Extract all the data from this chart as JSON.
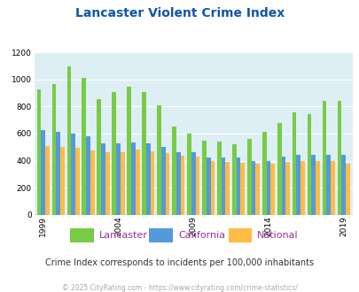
{
  "title": "Lancaster Violent Crime Index",
  "subtitle": "Crime Index corresponds to incidents per 100,000 inhabitants",
  "footer": "© 2025 CityRating.com - https://www.cityrating.com/crime-statistics/",
  "years": [
    1999,
    2000,
    2001,
    2002,
    2003,
    2004,
    2005,
    2006,
    2007,
    2008,
    2009,
    2010,
    2011,
    2012,
    2013,
    2014,
    2015,
    2016,
    2017,
    2018,
    2019
  ],
  "lancaster": [
    930,
    970,
    1100,
    1010,
    855,
    910,
    945,
    910,
    810,
    655,
    600,
    550,
    540,
    520,
    560,
    615,
    680,
    760,
    745,
    845,
    845
  ],
  "california": [
    625,
    615,
    600,
    580,
    530,
    525,
    535,
    530,
    500,
    465,
    460,
    420,
    425,
    420,
    400,
    395,
    430,
    445,
    445,
    445,
    440
  ],
  "national": [
    510,
    500,
    495,
    475,
    460,
    465,
    480,
    470,
    455,
    435,
    430,
    400,
    390,
    385,
    380,
    380,
    390,
    395,
    395,
    395,
    380
  ],
  "lancaster_color": "#77cc44",
  "california_color": "#5599dd",
  "national_color": "#ffbb44",
  "bg_color": "#ddeef5",
  "title_color": "#1155aa",
  "legend_label_color": "#993399",
  "subtitle_color": "#333333",
  "footer_color": "#aaaaaa",
  "ylim": [
    0,
    1200
  ],
  "yticks": [
    0,
    200,
    400,
    600,
    800,
    1000,
    1200
  ],
  "xlabel_ticks": [
    1999,
    2004,
    2009,
    2014,
    2019
  ],
  "bar_width": 0.28
}
